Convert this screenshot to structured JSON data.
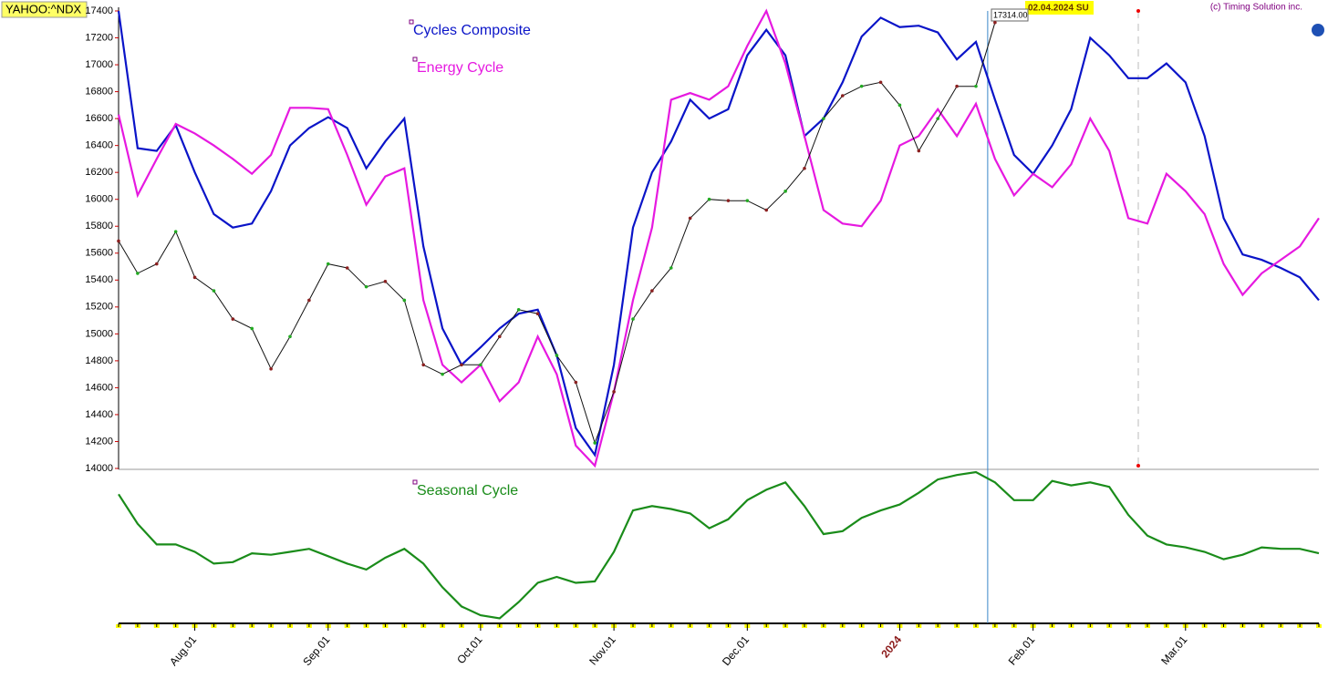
{
  "chart_data": {
    "type": "line",
    "title": "YAHOO:^NDX",
    "subtitle": "(c) Timing Solution inc.",
    "annotations": [
      {
        "label": "17314.00"
      },
      {
        "label": "02.04.2024 SU"
      }
    ],
    "categories": [
      null,
      null,
      null,
      null,
      "Aug.01",
      null,
      null,
      null,
      null,
      null,
      null,
      "Sep.01",
      null,
      null,
      null,
      null,
      null,
      null,
      null,
      "Oct.01",
      null,
      null,
      null,
      null,
      null,
      null,
      "Nov.01",
      null,
      null,
      null,
      null,
      null,
      null,
      "Dec.01",
      null,
      null,
      null,
      null,
      null,
      null,
      null,
      "2024",
      null,
      null,
      null,
      null,
      null,
      null,
      "Feb.01",
      null,
      null,
      null,
      null,
      null,
      null,
      null,
      "Mar.01",
      null,
      null,
      null,
      null,
      null,
      null,
      null
    ],
    "ylim": [
      14000,
      17400
    ],
    "yticks": [
      14000,
      14200,
      14400,
      14600,
      14800,
      15000,
      15200,
      15400,
      15600,
      15800,
      16000,
      16200,
      16400,
      16600,
      16800,
      17000,
      17200,
      17400
    ],
    "y2lim": [
      0,
      100
    ],
    "series": [
      {
        "name": "Cycles Composite",
        "color": "#0a14c8",
        "values": [
          17400,
          16380,
          16360,
          16550,
          16200,
          15890,
          15790,
          15820,
          16060,
          16400,
          16530,
          16610,
          16530,
          16230,
          16430,
          16600,
          15650,
          15040,
          14770,
          14900,
          15040,
          15150,
          15180,
          14840,
          14300,
          14100,
          14770,
          15790,
          16200,
          16430,
          16740,
          16600,
          16670,
          17070,
          17260,
          17070,
          16470,
          16600,
          16870,
          17210,
          17350,
          17280,
          17290,
          17240,
          17040,
          17170,
          16740,
          16330,
          16190,
          16400,
          16670,
          17200,
          17070,
          16900,
          16900,
          17010,
          16870,
          16470,
          15860,
          15590,
          15550,
          15490,
          15420,
          15250
        ]
      },
      {
        "name": "Energy Cycle",
        "color": "#e619e0",
        "values": [
          16630,
          16030,
          16300,
          16560,
          16490,
          16400,
          16300,
          16190,
          16330,
          16680,
          16680,
          16670,
          16330,
          15960,
          16170,
          16230,
          15250,
          14770,
          14640,
          14770,
          14500,
          14640,
          14980,
          14700,
          14170,
          14020,
          14570,
          15250,
          15790,
          16740,
          16790,
          16740,
          16840,
          17140,
          17400,
          17010,
          16470,
          15920,
          15820,
          15800,
          15990,
          16400,
          16470,
          16670,
          16470,
          16710,
          16300,
          16030,
          16190,
          16090,
          16260,
          16600,
          16360,
          15860,
          15820,
          16190,
          16060,
          15890,
          15520,
          15290,
          15450,
          15550,
          15650,
          15860
        ]
      },
      {
        "name": "YAHOO:^NDX",
        "color": "#111111",
        "values": [
          15690,
          15450,
          15520,
          15760,
          15420,
          15320,
          15110,
          15040,
          14740,
          14980,
          15250,
          15520,
          15490,
          15350,
          15390,
          15250,
          14770,
          14700,
          14770,
          14770,
          14980,
          15180,
          15150,
          14840,
          14640,
          14190,
          14570,
          15110,
          15320,
          15490,
          15860,
          16000,
          15990,
          15990,
          15920,
          16060,
          16230,
          16600,
          16770,
          16840,
          16870,
          16700,
          16360,
          16600,
          16840,
          16840,
          17314,
          null,
          null,
          null,
          null,
          null,
          null,
          null,
          null,
          null,
          null,
          null,
          null,
          null,
          null,
          null,
          null,
          null
        ]
      },
      {
        "name": "Seasonal Cycle",
        "color": "#1a8c1a",
        "axis": "y2",
        "values": [
          85,
          65,
          51,
          51,
          46,
          38,
          39,
          45,
          44,
          46,
          48,
          43,
          38,
          34,
          42,
          48,
          38,
          22,
          9,
          3,
          1,
          12,
          25,
          29,
          25,
          26,
          46,
          74,
          77,
          75,
          72,
          62,
          68,
          81,
          88,
          93,
          77,
          58,
          60,
          69,
          74,
          78,
          86,
          95,
          98,
          100,
          93,
          81,
          81,
          94,
          91,
          93,
          90,
          71,
          57,
          51,
          49,
          46,
          41,
          44,
          49,
          48,
          48,
          45
        ]
      }
    ]
  }
}
